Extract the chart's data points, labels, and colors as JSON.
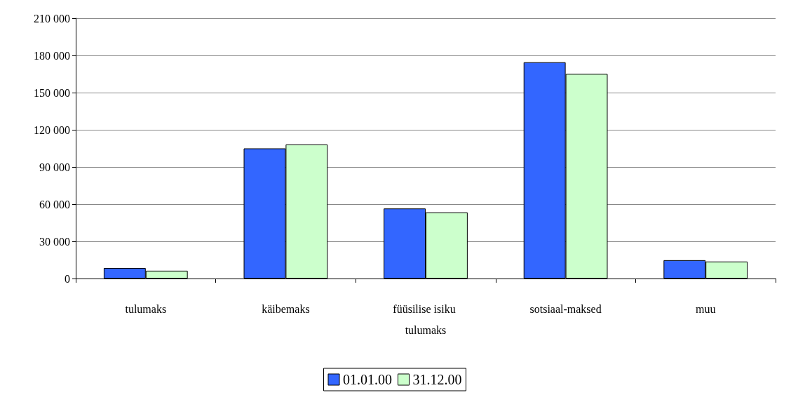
{
  "chart_data": {
    "type": "bar",
    "categories": [
      "tulumaks",
      "käibemaks",
      "füüsilise isiku tulumaks",
      "sotsiaal-maksed",
      "muu"
    ],
    "series": [
      {
        "name": "01.01.00",
        "color": "#3366ff",
        "values": [
          8500,
          105000,
          56500,
          174500,
          14800
        ]
      },
      {
        "name": "31.12.00",
        "color": "#ccffcc",
        "values": [
          6300,
          108200,
          53400,
          165100,
          13700
        ]
      }
    ],
    "ylim": [
      0,
      210000
    ],
    "yticks": [
      {
        "value": 0,
        "label": "0"
      },
      {
        "value": 30000,
        "label": "30 000"
      },
      {
        "value": 60000,
        "label": "60 000"
      },
      {
        "value": 90000,
        "label": "90 000"
      },
      {
        "value": 120000,
        "label": "120 000"
      },
      {
        "value": 150000,
        "label": "150 000"
      },
      {
        "value": 180000,
        "label": "180 000"
      },
      {
        "value": 210000,
        "label": "210 000"
      }
    ],
    "grid": "y",
    "legend": "bottom"
  }
}
